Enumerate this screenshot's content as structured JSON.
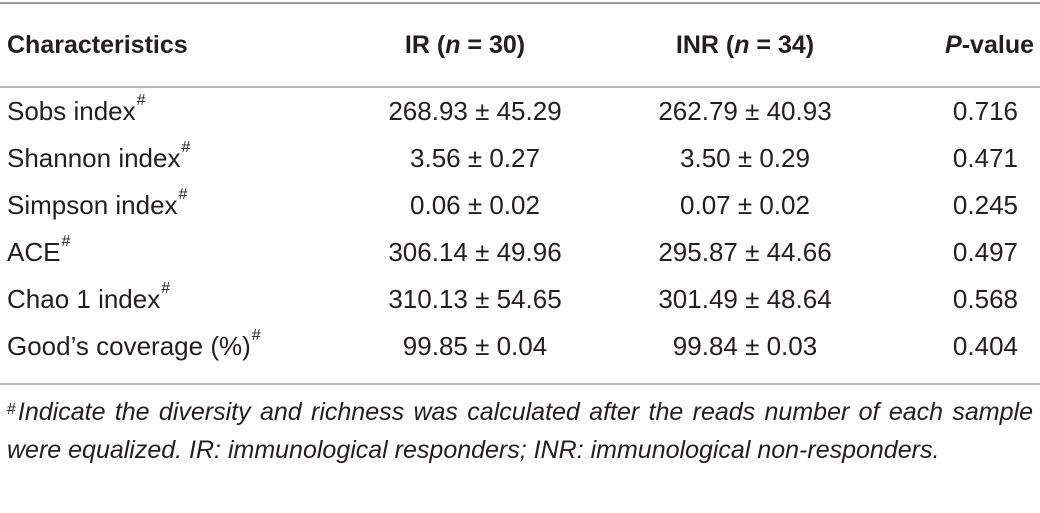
{
  "table": {
    "headers": {
      "characteristics": "Characteristics",
      "ir_prefix": "IR (",
      "ir_n": "n",
      "ir_suffix": " = 30)",
      "inr_prefix": "INR (",
      "inr_n": "n",
      "inr_suffix": " = 34)",
      "p_italic": "P",
      "p_suffix": "-value"
    },
    "rows": [
      {
        "label": "Sobs index",
        "mark": "#",
        "ir": "268.93 ± 45.29",
        "inr": "262.79 ± 40.93",
        "p": "0.716"
      },
      {
        "label": "Shannon index",
        "mark": "#",
        "ir": "3.56 ± 0.27",
        "inr": "3.50 ± 0.29",
        "p": "0.471"
      },
      {
        "label": "Simpson index",
        "mark": "#",
        "ir": "0.06 ± 0.02",
        "inr": "0.07 ± 0.02",
        "p": "0.245"
      },
      {
        "label": "ACE",
        "mark": "#",
        "ir": "306.14 ± 49.96",
        "inr": "295.87 ± 44.66",
        "p": "0.497"
      },
      {
        "label": "Chao 1 index",
        "mark": "#",
        "ir": "310.13 ± 54.65",
        "inr": "301.49 ± 48.64",
        "p": "0.568"
      },
      {
        "label": "Good’s coverage (%)",
        "mark": "#",
        "ir": "99.85 ± 0.04",
        "inr": "99.84 ± 0.03",
        "p": "0.404"
      }
    ]
  },
  "footnote": {
    "mark": "#",
    "text": "Indicate the diversity and richness was calculated after the reads number of each sample were equalized. IR: immunological responders; INR: immunological non-responders."
  }
}
